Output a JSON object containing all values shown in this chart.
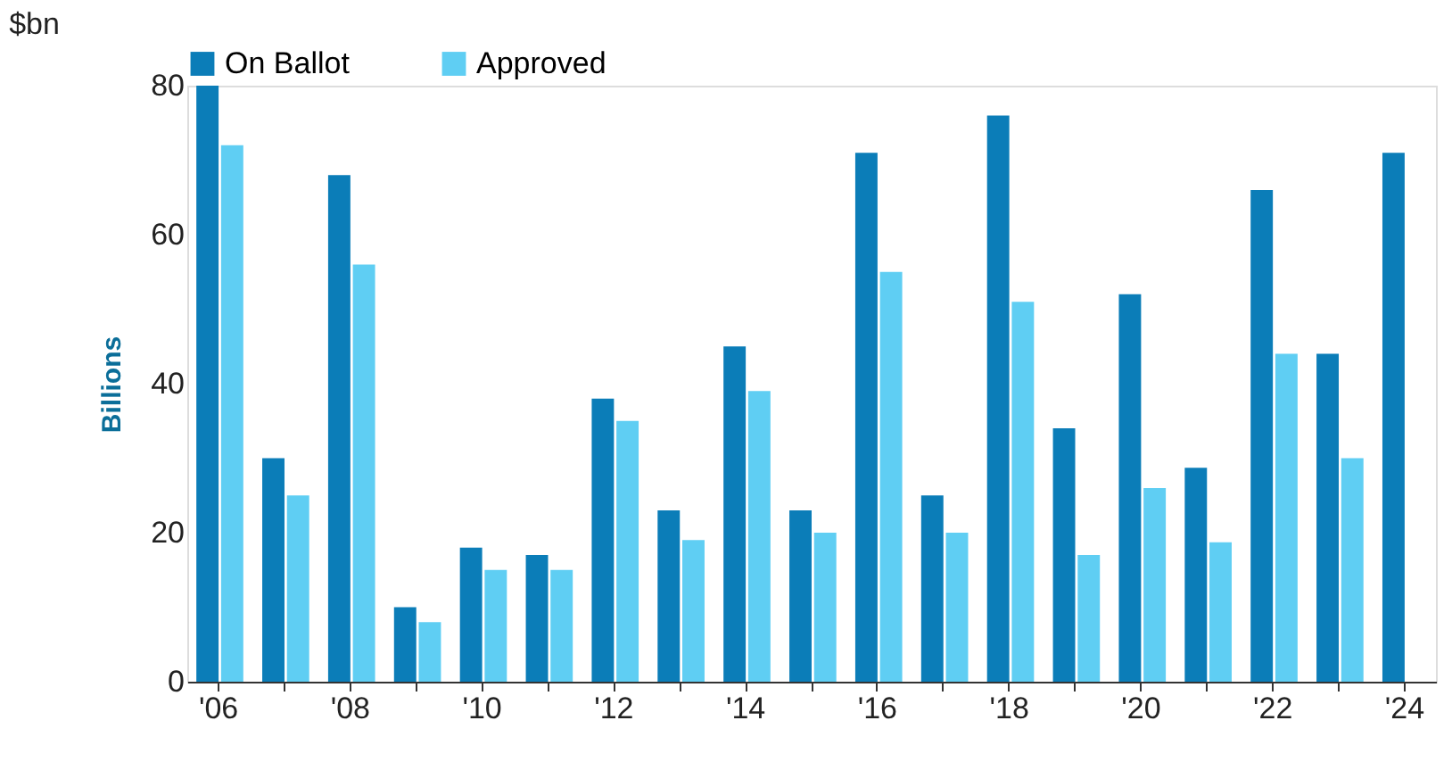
{
  "chart_data": {
    "type": "bar",
    "title": "$bn",
    "ylabel": "Billions",
    "categories": [
      "'06",
      null,
      "'08",
      null,
      "'10",
      null,
      "'12",
      null,
      "'14",
      null,
      "'16",
      null,
      "'18",
      null,
      "'20",
      null,
      "'22",
      null,
      "'24"
    ],
    "series": [
      {
        "name": "On Ballot",
        "color": "#0b7db8",
        "values": [
          80,
          30,
          68,
          10,
          18,
          17,
          38,
          23,
          45,
          23,
          71,
          25,
          76,
          34,
          52,
          28.7,
          66,
          44,
          71
        ]
      },
      {
        "name": "Approved",
        "color": "#5fcef3",
        "values": [
          72,
          25,
          56,
          8,
          15,
          15,
          35,
          19,
          39,
          20,
          55,
          20,
          51,
          17,
          26,
          18.7,
          44,
          30,
          null
        ]
      }
    ],
    "ylim": [
      0,
      80
    ],
    "yticks": [
      0,
      20,
      40,
      60,
      80
    ],
    "grid": false,
    "legend": "top"
  }
}
